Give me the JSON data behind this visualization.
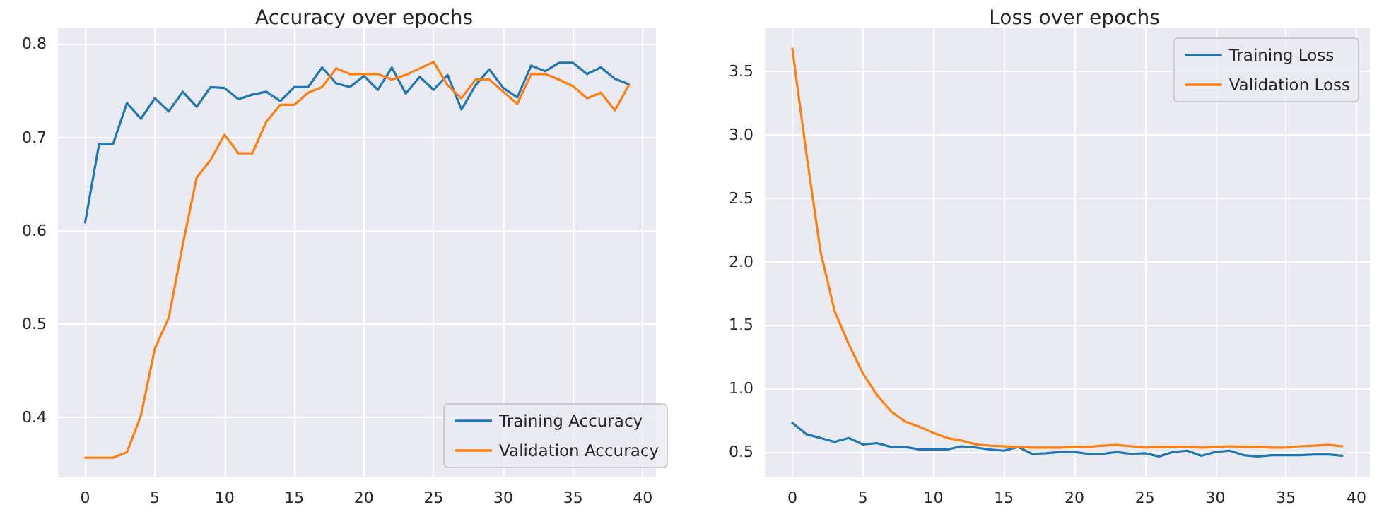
{
  "chart_data": [
    {
      "type": "line",
      "title": "Accuracy over epochs",
      "x": [
        0,
        1,
        2,
        3,
        4,
        5,
        6,
        7,
        8,
        9,
        10,
        11,
        12,
        13,
        14,
        15,
        16,
        17,
        18,
        19,
        20,
        21,
        22,
        23,
        24,
        25,
        26,
        27,
        28,
        29,
        30,
        31,
        32,
        33,
        34,
        35,
        36,
        37,
        38,
        39
      ],
      "series": [
        {
          "name": "Training Accuracy",
          "color": "#1f77b4",
          "values": [
            0.609,
            0.693,
            0.693,
            0.737,
            0.72,
            0.742,
            0.728,
            0.749,
            0.733,
            0.754,
            0.753,
            0.741,
            0.746,
            0.749,
            0.739,
            0.754,
            0.754,
            0.775,
            0.758,
            0.754,
            0.766,
            0.751,
            0.775,
            0.747,
            0.765,
            0.751,
            0.767,
            0.73,
            0.756,
            0.773,
            0.753,
            0.743,
            0.777,
            0.771,
            0.78,
            0.78,
            0.768,
            0.775,
            0.763,
            0.757
          ]
        },
        {
          "name": "Validation Accuracy",
          "color": "#ff7f0e",
          "values": [
            0.357,
            0.357,
            0.357,
            0.363,
            0.402,
            0.474,
            0.507,
            0.585,
            0.657,
            0.676,
            0.703,
            0.683,
            0.683,
            0.717,
            0.735,
            0.735,
            0.748,
            0.754,
            0.774,
            0.768,
            0.768,
            0.768,
            0.762,
            0.767,
            0.774,
            0.781,
            0.756,
            0.742,
            0.762,
            0.762,
            0.749,
            0.736,
            0.768,
            0.768,
            0.762,
            0.755,
            0.742,
            0.748,
            0.729,
            0.756
          ]
        }
      ],
      "xlim": [
        -1.95,
        40.95
      ],
      "xticks": [
        0,
        5,
        10,
        15,
        20,
        25,
        30,
        35,
        40
      ],
      "ylim": [
        0.336,
        0.817
      ],
      "yticks": [
        0.4,
        0.5,
        0.6,
        0.7,
        0.8
      ],
      "grid": true,
      "legend": "bottom right",
      "marker": "none",
      "line_style": "solid"
    },
    {
      "type": "line",
      "title": "Loss over epochs",
      "x": [
        0,
        1,
        2,
        3,
        4,
        5,
        6,
        7,
        8,
        9,
        10,
        11,
        12,
        13,
        14,
        15,
        16,
        17,
        18,
        19,
        20,
        21,
        22,
        23,
        24,
        25,
        26,
        27,
        28,
        29,
        30,
        31,
        32,
        33,
        34,
        35,
        36,
        37,
        38,
        39
      ],
      "series": [
        {
          "name": "Training Loss",
          "color": "#1f77b4",
          "values": [
            0.73,
            0.64,
            0.61,
            0.58,
            0.61,
            0.56,
            0.57,
            0.54,
            0.54,
            0.52,
            0.52,
            0.52,
            0.545,
            0.535,
            0.52,
            0.51,
            0.54,
            0.485,
            0.49,
            0.5,
            0.5,
            0.485,
            0.485,
            0.5,
            0.485,
            0.49,
            0.465,
            0.5,
            0.51,
            0.47,
            0.5,
            0.51,
            0.475,
            0.465,
            0.475,
            0.475,
            0.475,
            0.48,
            0.48,
            0.47
          ]
        },
        {
          "name": "Validation Loss",
          "color": "#ff7f0e",
          "values": [
            3.68,
            2.85,
            2.08,
            1.61,
            1.35,
            1.12,
            0.95,
            0.82,
            0.74,
            0.7,
            0.65,
            0.61,
            0.59,
            0.56,
            0.55,
            0.545,
            0.54,
            0.535,
            0.535,
            0.535,
            0.54,
            0.54,
            0.55,
            0.555,
            0.545,
            0.535,
            0.54,
            0.54,
            0.54,
            0.535,
            0.54,
            0.545,
            0.54,
            0.54,
            0.535,
            0.535,
            0.545,
            0.55,
            0.555,
            0.545
          ]
        }
      ],
      "xlim": [
        -1.95,
        40.95
      ],
      "xticks": [
        0,
        5,
        10,
        15,
        20,
        25,
        30,
        35,
        40
      ],
      "ylim": [
        0.3,
        3.84
      ],
      "yticks": [
        {
          "value": 0.5,
          "label": "0.5"
        },
        {
          "value": 1,
          "label": "1.0"
        },
        {
          "value": 1.5,
          "label": "1.5"
        },
        {
          "value": 2,
          "label": "2.0"
        },
        {
          "value": 2.5,
          "label": "2.5"
        },
        {
          "value": 3,
          "label": "3.0"
        },
        {
          "value": 3.5,
          "label": "3.5"
        }
      ],
      "grid": true,
      "legend": "top right",
      "marker": "none",
      "line_style": "solid"
    }
  ]
}
